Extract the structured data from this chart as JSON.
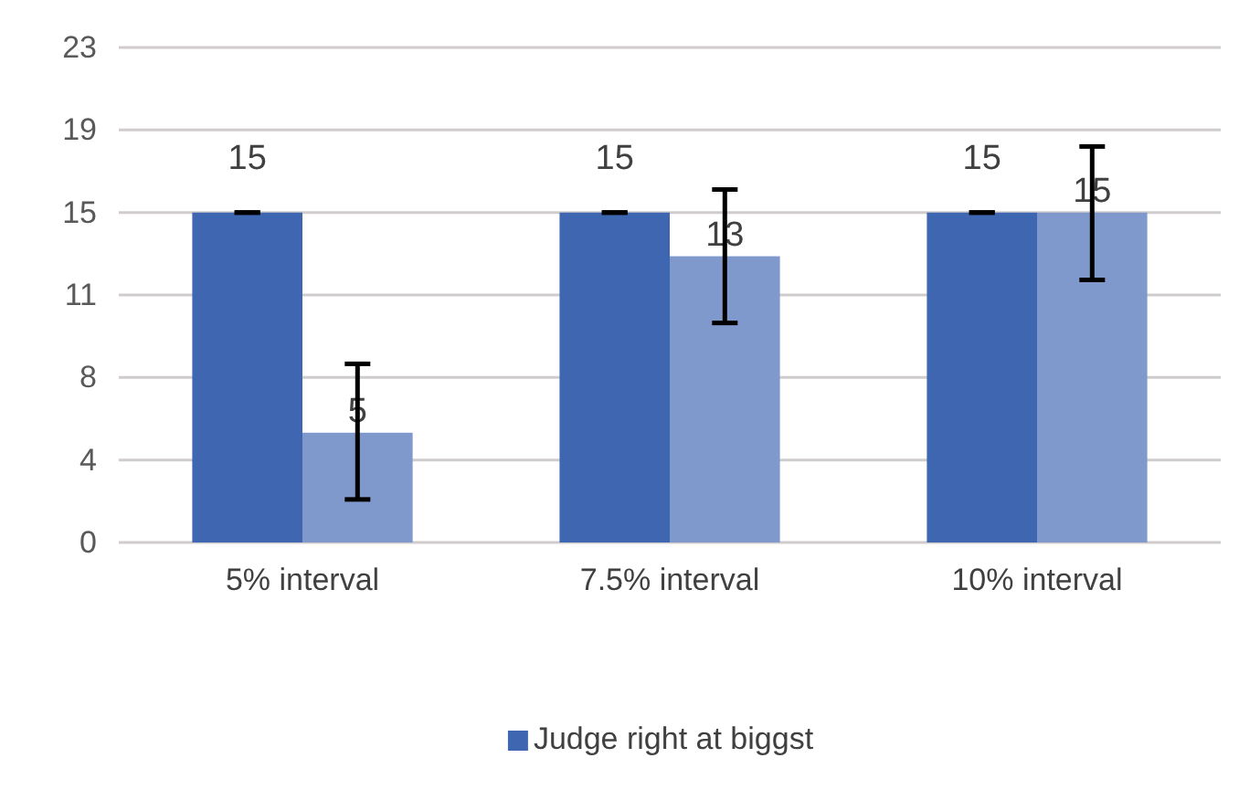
{
  "chart_data": {
    "type": "bar",
    "categories": [
      "5% interval",
      "7.5% interval",
      "10% interval"
    ],
    "series": [
      {
        "name": "Judge right at biggst",
        "color": "#3f66b0",
        "values": [
          15.33,
          15.33,
          15.33
        ],
        "errors": [
          0,
          0,
          0
        ],
        "value_labels": [
          "15",
          "15",
          "15"
        ]
      },
      {
        "color": "#7f99cc",
        "values": [
          5.1,
          13.3,
          15.33
        ],
        "errors": [
          [
            2.0,
            8.3
          ],
          [
            10.2,
            16.4
          ],
          [
            12.2,
            18.4
          ]
        ],
        "value_labels": [
          "5",
          "13",
          "15"
        ]
      }
    ],
    "ylim": [
      0,
      23
    ],
    "yticks": [
      0,
      {
        "value": 3.83,
        "label": "4"
      },
      {
        "value": 7.67,
        "label": "8"
      },
      {
        "value": 11.5,
        "label": "11"
      },
      {
        "value": 15.33,
        "label": "15"
      },
      {
        "value": 19.17,
        "label": "19"
      },
      23
    ],
    "grid": "y",
    "legend": "bottom"
  }
}
